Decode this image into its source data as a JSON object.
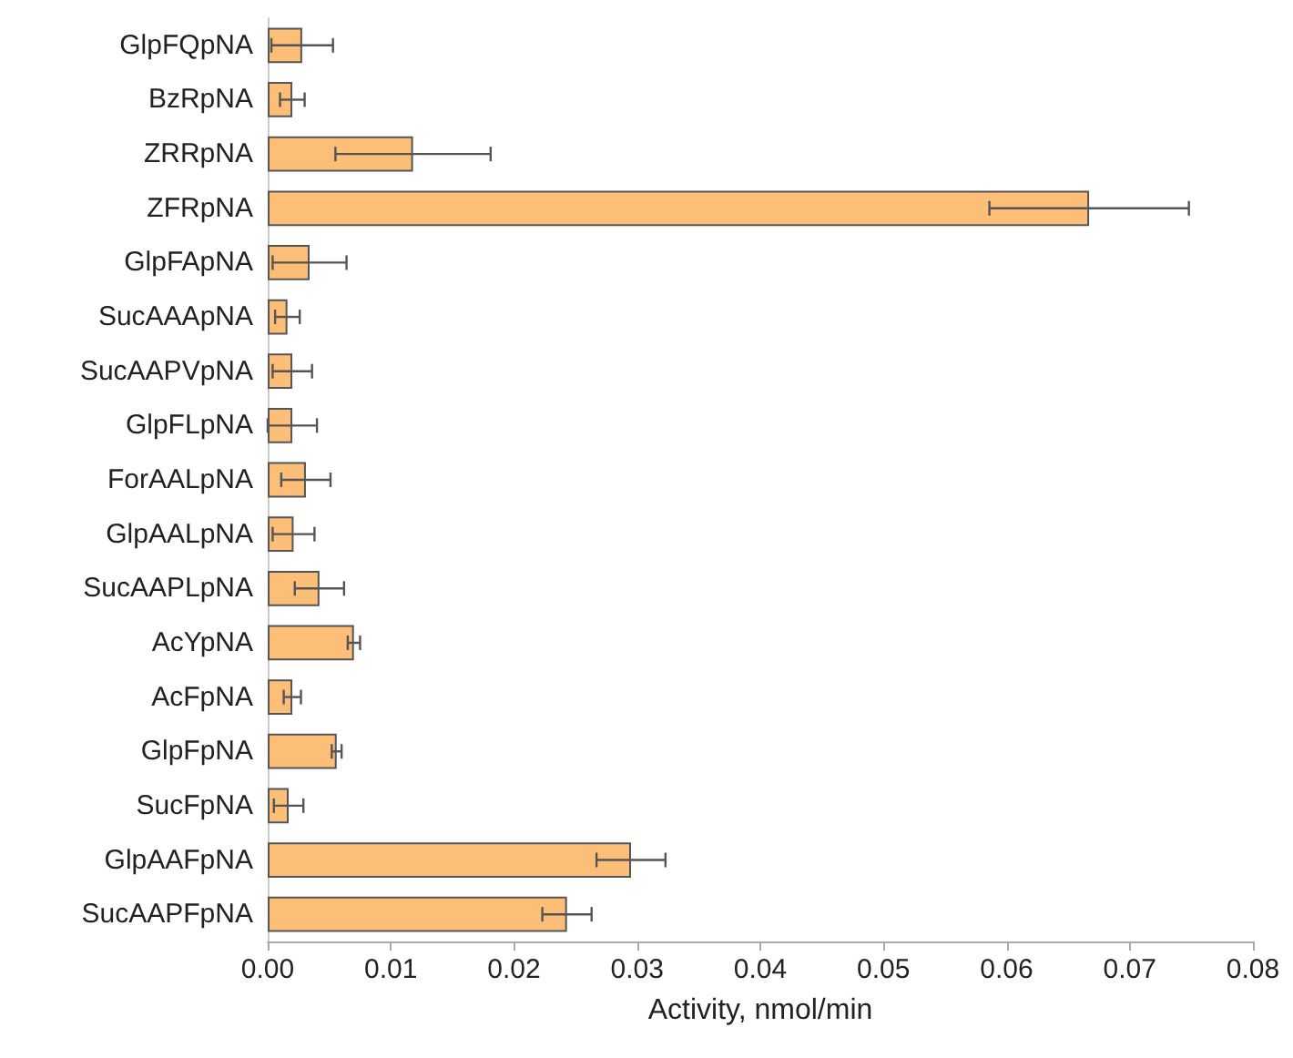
{
  "chart_data": {
    "type": "bar",
    "orientation": "horizontal",
    "xlabel": "Activity, nmol/min",
    "categories": [
      "GlpFQpNA",
      "BzRpNA",
      "ZRRpNA",
      "ZFRpNA",
      "GlpFApNA",
      "SucAAApNA",
      "SucAAPVpNA",
      "GlpFLpNA",
      "ForAALpNA",
      "GlpAALpNA",
      "SucAAPLpNA",
      "AcYpNA",
      "AcFpNA",
      "GlpFpNA",
      "SucFpNA",
      "GlpAAFpNA",
      "SucAAPFpNA"
    ],
    "values": [
      0.0028,
      0.002,
      0.0118,
      0.0667,
      0.0034,
      0.0016,
      0.002,
      0.002,
      0.0031,
      0.0021,
      0.0042,
      0.007,
      0.002,
      0.0056,
      0.0017,
      0.0295,
      0.0243
    ],
    "errors": [
      0.0025,
      0.001,
      0.0063,
      0.0081,
      0.003,
      0.001,
      0.0016,
      0.002,
      0.002,
      0.0017,
      0.002,
      0.0005,
      0.0007,
      0.0004,
      0.0012,
      0.0028,
      0.002
    ],
    "color": "#fdbf78",
    "xlim": [
      0,
      0.08
    ],
    "xticks": [
      {
        "value": 0,
        "label": "0.00"
      },
      {
        "value": 0.01,
        "label": "0.01"
      },
      {
        "value": 0.02,
        "label": "0.02"
      },
      {
        "value": 0.03,
        "label": "0.03"
      },
      {
        "value": 0.04,
        "label": "0.04"
      },
      {
        "value": 0.05,
        "label": "0.05"
      },
      {
        "value": 0.06,
        "label": "0.06"
      },
      {
        "value": 0.07,
        "label": "0.07"
      },
      {
        "value": 0.08,
        "label": "0.08"
      }
    ],
    "grid": false
  }
}
